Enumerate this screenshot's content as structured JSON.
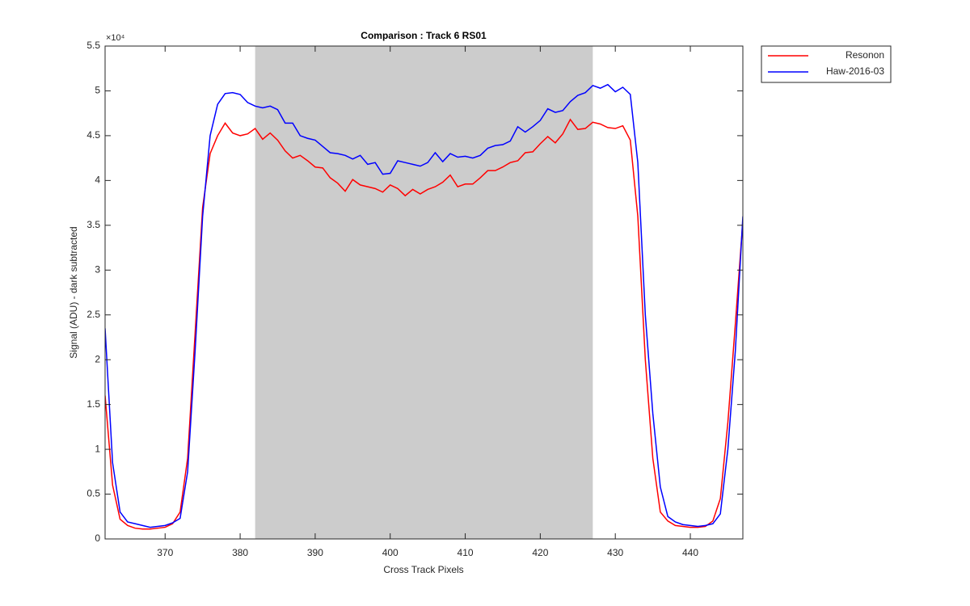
{
  "chart_data": {
    "type": "line",
    "title": "Comparison : Track 6  RS01",
    "xlabel": "Cross Track Pixels",
    "ylabel": "Signal (ADU) - dark subtracted",
    "y_exponent": "×10⁴",
    "x": [
      362,
      363,
      364,
      365,
      366,
      367,
      368,
      369,
      370,
      371,
      372,
      373,
      374,
      375,
      376,
      377,
      378,
      379,
      380,
      381,
      382,
      383,
      384,
      385,
      386,
      387,
      388,
      389,
      390,
      391,
      392,
      393,
      394,
      395,
      396,
      397,
      398,
      399,
      400,
      401,
      402,
      403,
      404,
      405,
      406,
      407,
      408,
      409,
      410,
      411,
      412,
      413,
      414,
      415,
      416,
      417,
      418,
      419,
      420,
      421,
      422,
      423,
      424,
      425,
      426,
      427,
      428,
      429,
      430,
      431,
      432,
      433,
      434,
      435,
      436,
      437,
      438,
      439,
      440,
      441,
      442,
      443,
      444,
      445,
      446,
      447
    ],
    "series": [
      {
        "name": "Resonon",
        "color": "#ff0000",
        "values": [
          1.6,
          0.6,
          0.22,
          0.15,
          0.12,
          0.11,
          0.11,
          0.12,
          0.13,
          0.17,
          0.3,
          0.9,
          2.3,
          3.7,
          4.3,
          4.5,
          4.64,
          4.53,
          4.5,
          4.52,
          4.58,
          4.46,
          4.53,
          4.45,
          4.33,
          4.25,
          4.28,
          4.22,
          4.15,
          4.14,
          4.03,
          3.97,
          3.88,
          4.01,
          3.95,
          3.93,
          3.91,
          3.87,
          3.95,
          3.91,
          3.83,
          3.9,
          3.85,
          3.9,
          3.93,
          3.98,
          4.06,
          3.93,
          3.96,
          3.96,
          4.03,
          4.11,
          4.11,
          4.15,
          4.2,
          4.22,
          4.31,
          4.32,
          4.41,
          4.49,
          4.42,
          4.52,
          4.68,
          4.57,
          4.58,
          4.65,
          4.63,
          4.59,
          4.58,
          4.61,
          4.45,
          3.6,
          2.0,
          0.9,
          0.3,
          0.2,
          0.15,
          0.14,
          0.13,
          0.13,
          0.14,
          0.2,
          0.45,
          1.3,
          2.4,
          3.55
        ]
      },
      {
        "name": "Haw-2016-03",
        "color": "#0000ff",
        "values": [
          2.35,
          0.85,
          0.3,
          0.19,
          0.17,
          0.15,
          0.13,
          0.14,
          0.15,
          0.18,
          0.23,
          0.75,
          2.1,
          3.6,
          4.5,
          4.85,
          4.97,
          4.98,
          4.96,
          4.87,
          4.83,
          4.81,
          4.83,
          4.79,
          4.64,
          4.64,
          4.5,
          4.47,
          4.45,
          4.38,
          4.31,
          4.3,
          4.28,
          4.24,
          4.28,
          4.18,
          4.2,
          4.07,
          4.08,
          4.22,
          4.2,
          4.18,
          4.16,
          4.2,
          4.31,
          4.21,
          4.3,
          4.26,
          4.27,
          4.25,
          4.28,
          4.36,
          4.39,
          4.4,
          4.44,
          4.6,
          4.54,
          4.6,
          4.67,
          4.8,
          4.76,
          4.78,
          4.88,
          4.95,
          4.98,
          5.06,
          5.03,
          5.07,
          4.99,
          5.04,
          4.96,
          4.2,
          2.5,
          1.4,
          0.58,
          0.25,
          0.19,
          0.16,
          0.15,
          0.14,
          0.15,
          0.17,
          0.28,
          1.0,
          2.1,
          3.6
        ]
      }
    ],
    "shaded_region": {
      "x": [
        382,
        427
      ],
      "color": "#cccccc"
    },
    "xlim": [
      362,
      447
    ],
    "xticks": [
      370,
      380,
      390,
      400,
      410,
      420,
      430,
      440
    ],
    "ylim": [
      0,
      5.5
    ],
    "yticks": [
      0,
      0.5,
      1,
      1.5,
      2,
      2.5,
      3,
      3.5,
      4,
      4.5,
      5,
      5.5
    ],
    "legend": "outside-top-right"
  }
}
